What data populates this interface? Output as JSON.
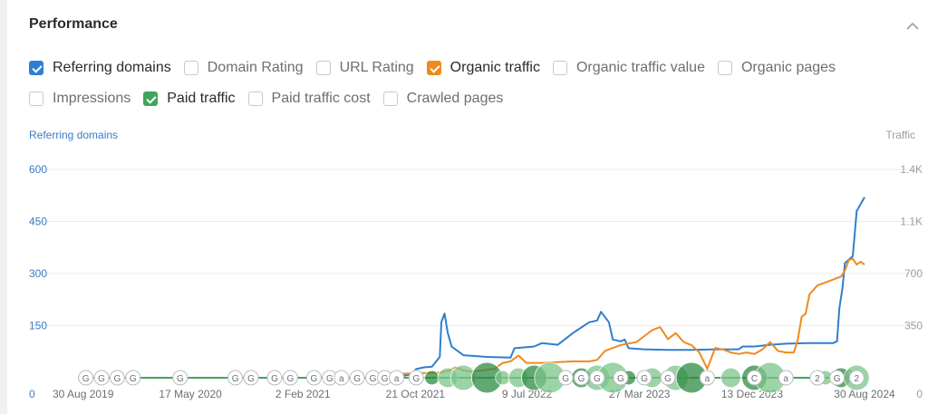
{
  "header": {
    "title": "Performance",
    "collapse_icon": "chevron-up-icon"
  },
  "toggles": {
    "row1": [
      {
        "label": "Referring domains",
        "checked": true,
        "color": "#2f7fd0"
      },
      {
        "label": "Domain Rating",
        "checked": false
      },
      {
        "label": "URL Rating",
        "checked": false
      },
      {
        "label": "Organic traffic",
        "checked": true,
        "color": "#f08a1c"
      },
      {
        "label": "Organic traffic value",
        "checked": false
      },
      {
        "label": "Organic pages",
        "checked": false
      }
    ],
    "row2": [
      {
        "label": "Impressions",
        "checked": false
      },
      {
        "label": "Paid traffic",
        "checked": true,
        "color": "#3fa55b"
      },
      {
        "label": "Paid traffic cost",
        "checked": false
      },
      {
        "label": "Crawled pages",
        "checked": false
      }
    ]
  },
  "chart_data": {
    "type": "line",
    "y_left_label": "Referring domains",
    "y_right_label": "Traffic",
    "y_left_ticks": [
      "0",
      "150",
      "300",
      "450",
      "600"
    ],
    "y_left_values": [
      0,
      150,
      300,
      450,
      600
    ],
    "y_right_ticks": [
      "0",
      "350",
      "700",
      "1.1K",
      "1.4K"
    ],
    "x_tick_labels": [
      "30 Aug 2019",
      "17 May 2020",
      "2 Feb 2021",
      "21 Oct 2021",
      "9 Jul 2022",
      "27 Mar 2023",
      "13 Dec 2023",
      "30 Aug 2024"
    ],
    "x_tick_t": [
      0,
      0.143,
      0.286,
      0.429,
      0.571,
      0.714,
      0.857,
      1.0
    ],
    "ylim_left": [
      0,
      600
    ],
    "ylim_right": [
      0,
      1400
    ],
    "grid": true,
    "series": [
      {
        "name": "Referring domains",
        "color": "#2f7fd0",
        "axis": "left",
        "points": [
          [
            0.0,
            0
          ],
          [
            0.4,
            0
          ],
          [
            0.425,
            10
          ],
          [
            0.43,
            25
          ],
          [
            0.44,
            30
          ],
          [
            0.45,
            32
          ],
          [
            0.46,
            60
          ],
          [
            0.462,
            160
          ],
          [
            0.466,
            185
          ],
          [
            0.47,
            130
          ],
          [
            0.475,
            90
          ],
          [
            0.49,
            65
          ],
          [
            0.52,
            60
          ],
          [
            0.55,
            58
          ],
          [
            0.555,
            85
          ],
          [
            0.57,
            88
          ],
          [
            0.58,
            90
          ],
          [
            0.59,
            100
          ],
          [
            0.61,
            95
          ],
          [
            0.63,
            130
          ],
          [
            0.65,
            160
          ],
          [
            0.66,
            165
          ],
          [
            0.665,
            190
          ],
          [
            0.675,
            160
          ],
          [
            0.68,
            110
          ],
          [
            0.69,
            105
          ],
          [
            0.695,
            110
          ],
          [
            0.7,
            85
          ],
          [
            0.72,
            82
          ],
          [
            0.75,
            80
          ],
          [
            0.78,
            80
          ],
          [
            0.81,
            82
          ],
          [
            0.84,
            82
          ],
          [
            0.845,
            90
          ],
          [
            0.86,
            90
          ],
          [
            0.88,
            95
          ],
          [
            0.9,
            98
          ],
          [
            0.93,
            100
          ],
          [
            0.95,
            100
          ],
          [
            0.96,
            100
          ],
          [
            0.965,
            105
          ],
          [
            0.968,
            200
          ],
          [
            0.972,
            260
          ],
          [
            0.975,
            330
          ],
          [
            0.985,
            350
          ],
          [
            0.99,
            480
          ],
          [
            0.995,
            500
          ],
          [
            1.0,
            520
          ]
        ]
      },
      {
        "name": "Organic traffic",
        "color": "#f08a1c",
        "axis": "right",
        "points": [
          [
            0.4,
            25
          ],
          [
            0.43,
            30
          ],
          [
            0.46,
            35
          ],
          [
            0.47,
            45
          ],
          [
            0.48,
            70
          ],
          [
            0.49,
            50
          ],
          [
            0.5,
            40
          ],
          [
            0.53,
            60
          ],
          [
            0.54,
            100
          ],
          [
            0.55,
            110
          ],
          [
            0.56,
            150
          ],
          [
            0.57,
            100
          ],
          [
            0.59,
            100
          ],
          [
            0.61,
            105
          ],
          [
            0.63,
            110
          ],
          [
            0.65,
            110
          ],
          [
            0.66,
            120
          ],
          [
            0.67,
            180
          ],
          [
            0.68,
            200
          ],
          [
            0.69,
            220
          ],
          [
            0.7,
            230
          ],
          [
            0.71,
            240
          ],
          [
            0.72,
            280
          ],
          [
            0.73,
            320
          ],
          [
            0.74,
            340
          ],
          [
            0.75,
            260
          ],
          [
            0.76,
            300
          ],
          [
            0.77,
            240
          ],
          [
            0.78,
            220
          ],
          [
            0.79,
            170
          ],
          [
            0.8,
            60
          ],
          [
            0.81,
            200
          ],
          [
            0.82,
            190
          ],
          [
            0.83,
            170
          ],
          [
            0.84,
            160
          ],
          [
            0.85,
            170
          ],
          [
            0.86,
            160
          ],
          [
            0.87,
            190
          ],
          [
            0.88,
            240
          ],
          [
            0.89,
            180
          ],
          [
            0.9,
            170
          ],
          [
            0.91,
            170
          ],
          [
            0.915,
            250
          ],
          [
            0.92,
            410
          ],
          [
            0.925,
            430
          ],
          [
            0.93,
            560
          ],
          [
            0.94,
            620
          ],
          [
            0.95,
            640
          ],
          [
            0.96,
            660
          ],
          [
            0.97,
            680
          ],
          [
            0.975,
            720
          ],
          [
            0.98,
            790
          ],
          [
            0.985,
            800
          ],
          [
            0.99,
            760
          ],
          [
            0.995,
            780
          ],
          [
            1.0,
            760
          ]
        ]
      },
      {
        "name": "Paid traffic",
        "color": "#3fa55b",
        "axis": "right",
        "points": [
          [
            0.0,
            0
          ],
          [
            0.96,
            0
          ],
          [
            0.965,
            30
          ],
          [
            0.97,
            40
          ],
          [
            0.975,
            20
          ],
          [
            0.98,
            50
          ],
          [
            0.985,
            30
          ],
          [
            0.99,
            10
          ],
          [
            1.0,
            0
          ]
        ]
      }
    ],
    "annotation_markers": [
      {
        "t": 0.01,
        "label": "G"
      },
      {
        "t": 0.03,
        "label": "G"
      },
      {
        "t": 0.05,
        "label": "G"
      },
      {
        "t": 0.07,
        "label": "G"
      },
      {
        "t": 0.13,
        "label": "G"
      },
      {
        "t": 0.2,
        "label": "G"
      },
      {
        "t": 0.22,
        "label": "G"
      },
      {
        "t": 0.25,
        "label": "G"
      },
      {
        "t": 0.27,
        "label": "G"
      },
      {
        "t": 0.3,
        "label": "G"
      },
      {
        "t": 0.32,
        "label": "G"
      },
      {
        "t": 0.335,
        "label": "a"
      },
      {
        "t": 0.355,
        "label": "G"
      },
      {
        "t": 0.375,
        "label": "G"
      },
      {
        "t": 0.39,
        "label": "G"
      },
      {
        "t": 0.405,
        "label": "a"
      },
      {
        "t": 0.43,
        "label": "G"
      },
      {
        "t": 0.62,
        "label": "G"
      },
      {
        "t": 0.64,
        "label": "G"
      },
      {
        "t": 0.66,
        "label": "G"
      },
      {
        "t": 0.69,
        "label": "G"
      },
      {
        "t": 0.72,
        "label": "G"
      },
      {
        "t": 0.75,
        "label": "G"
      },
      {
        "t": 0.8,
        "label": "a"
      },
      {
        "t": 0.86,
        "label": "C"
      },
      {
        "t": 0.9,
        "label": "a"
      },
      {
        "t": 0.94,
        "label": "2"
      },
      {
        "t": 0.965,
        "label": "G"
      },
      {
        "t": 0.99,
        "label": "2"
      }
    ],
    "bubbles": [
      0.45,
      0.47,
      0.49,
      0.52,
      0.54,
      0.56,
      0.58,
      0.6,
      0.62,
      0.64,
      0.66,
      0.68,
      0.7,
      0.73,
      0.76,
      0.78,
      0.8,
      0.83,
      0.86,
      0.88,
      0.95,
      0.97,
      0.99
    ]
  }
}
